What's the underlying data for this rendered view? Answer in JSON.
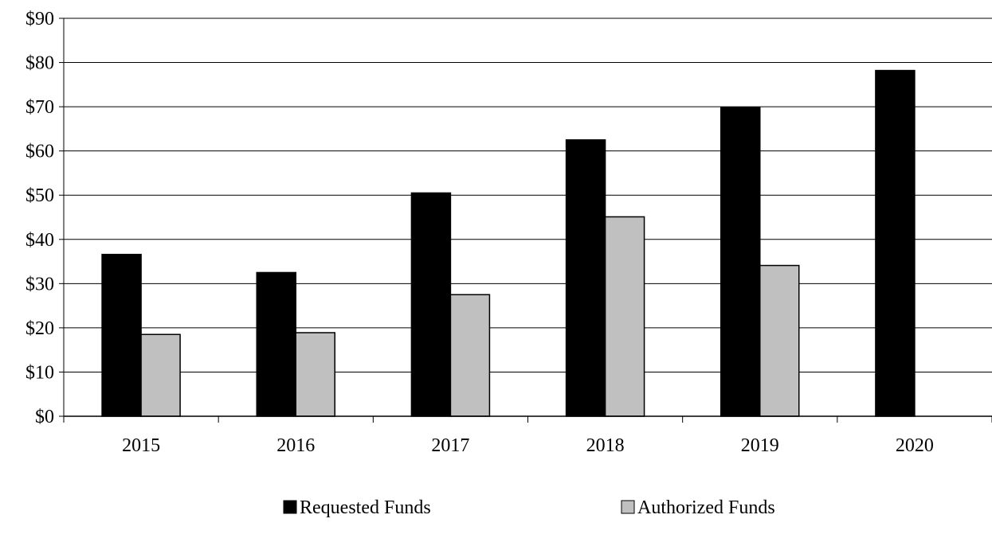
{
  "chart_data": {
    "type": "bar",
    "categories": [
      "2015",
      "2016",
      "2017",
      "2018",
      "2019",
      "2020"
    ],
    "series": [
      {
        "name": "Requested Funds",
        "color": "#000000",
        "values": [
          36.6,
          32.5,
          50.5,
          62.5,
          69.8,
          78.2
        ]
      },
      {
        "name": "Authorized Funds",
        "color": "#c0c0c0",
        "values": [
          18.5,
          18.9,
          27.5,
          45.1,
          34.1,
          null
        ]
      }
    ],
    "y_ticks": [
      "$0",
      "$10",
      "$20",
      "$30",
      "$40",
      "$50",
      "$60",
      "$70",
      "$80",
      "$90"
    ],
    "ylim": [
      0,
      90
    ],
    "title": "",
    "xlabel": "",
    "ylabel": "",
    "grid": true,
    "legend_position": "bottom"
  }
}
